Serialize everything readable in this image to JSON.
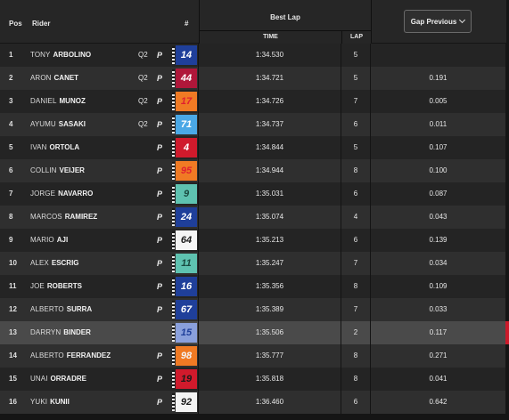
{
  "header": {
    "pos": "Pos",
    "rider": "Rider",
    "number": "#",
    "best_lap": "Best Lap",
    "time": "TIME",
    "lap": "LAP",
    "gap_button": "Gap Previous"
  },
  "colors": {
    "highlight_row": "#4a4a4a",
    "edge_marker": "#cc1a2a"
  },
  "rows": [
    {
      "pos": "1",
      "first": "TONY",
      "last": "ARBOLINO",
      "q": "Q2",
      "p": "P",
      "number": "14",
      "num_bg": "#1f3f9a",
      "num_fg": "#ffffff",
      "time": "1:34.530",
      "lap": "5",
      "gap": ""
    },
    {
      "pos": "2",
      "first": "ARON",
      "last": "CANET",
      "q": "Q2",
      "p": "P",
      "number": "44",
      "num_bg": "#b0173a",
      "num_fg": "#ffffff",
      "time": "1:34.721",
      "lap": "5",
      "gap": "0.191"
    },
    {
      "pos": "3",
      "first": "DANIEL",
      "last": "MUNOZ",
      "q": "Q2",
      "p": "P",
      "number": "17",
      "num_bg": "#f07a24",
      "num_fg": "#e02030",
      "time": "1:34.726",
      "lap": "7",
      "gap": "0.005"
    },
    {
      "pos": "4",
      "first": "AYUMU",
      "last": "SASAKI",
      "q": "Q2",
      "p": "P",
      "number": "71",
      "num_bg": "#4aa8e6",
      "num_fg": "#ffffff",
      "time": "1:34.737",
      "lap": "6",
      "gap": "0.011"
    },
    {
      "pos": "5",
      "first": "IVAN",
      "last": "ORTOLA",
      "q": "",
      "p": "P",
      "number": "4",
      "num_bg": "#d01a2c",
      "num_fg": "#ffffff",
      "time": "1:34.844",
      "lap": "5",
      "gap": "0.107"
    },
    {
      "pos": "6",
      "first": "COLLIN",
      "last": "VEIJER",
      "q": "",
      "p": "P",
      "number": "95",
      "num_bg": "#f07a24",
      "num_fg": "#e02030",
      "time": "1:34.944",
      "lap": "8",
      "gap": "0.100"
    },
    {
      "pos": "7",
      "first": "JORGE",
      "last": "NAVARRO",
      "q": "",
      "p": "P",
      "number": "9",
      "num_bg": "#5ec2b0",
      "num_fg": "#1a4a40",
      "time": "1:35.031",
      "lap": "6",
      "gap": "0.087"
    },
    {
      "pos": "8",
      "first": "MARCOS",
      "last": "RAMIREZ",
      "q": "",
      "p": "P",
      "number": "24",
      "num_bg": "#1f3f9a",
      "num_fg": "#ffffff",
      "time": "1:35.074",
      "lap": "4",
      "gap": "0.043"
    },
    {
      "pos": "9",
      "first": "MARIO",
      "last": "AJI",
      "q": "",
      "p": "P",
      "number": "64",
      "num_bg": "#f4f4f4",
      "num_fg": "#1a1a1a",
      "time": "1:35.213",
      "lap": "6",
      "gap": "0.139"
    },
    {
      "pos": "10",
      "first": "ALEX",
      "last": "ESCRIG",
      "q": "",
      "p": "P",
      "number": "11",
      "num_bg": "#5ec2b0",
      "num_fg": "#1a4a40",
      "time": "1:35.247",
      "lap": "7",
      "gap": "0.034"
    },
    {
      "pos": "11",
      "first": "JOE",
      "last": "ROBERTS",
      "q": "",
      "p": "P",
      "number": "16",
      "num_bg": "#1f3f9a",
      "num_fg": "#ffffff",
      "time": "1:35.356",
      "lap": "8",
      "gap": "0.109"
    },
    {
      "pos": "12",
      "first": "ALBERTO",
      "last": "SURRA",
      "q": "",
      "p": "P",
      "number": "67",
      "num_bg": "#1f3f9a",
      "num_fg": "#ffffff",
      "time": "1:35.389",
      "lap": "7",
      "gap": "0.033"
    },
    {
      "pos": "13",
      "first": "DARRYN",
      "last": "BINDER",
      "q": "",
      "p": "",
      "number": "15",
      "num_bg": "#8aa0dc",
      "num_fg": "#1f3f9a",
      "time": "1:35.506",
      "lap": "2",
      "gap": "0.117"
    },
    {
      "pos": "14",
      "first": "ALBERTO",
      "last": "FERRANDEZ",
      "q": "",
      "p": "P",
      "number": "98",
      "num_bg": "#f07a24",
      "num_fg": "#f4f4f4",
      "time": "1:35.777",
      "lap": "8",
      "gap": "0.271"
    },
    {
      "pos": "15",
      "first": "UNAI",
      "last": "ORRADRE",
      "q": "",
      "p": "P",
      "number": "19",
      "num_bg": "#d01a2c",
      "num_fg": "#1a1a1a",
      "time": "1:35.818",
      "lap": "8",
      "gap": "0.041"
    },
    {
      "pos": "16",
      "first": "YUKI",
      "last": "KUNII",
      "q": "",
      "p": "P",
      "number": "92",
      "num_bg": "#f4f4f4",
      "num_fg": "#1a1a1a",
      "time": "1:36.460",
      "lap": "6",
      "gap": "0.642"
    }
  ]
}
